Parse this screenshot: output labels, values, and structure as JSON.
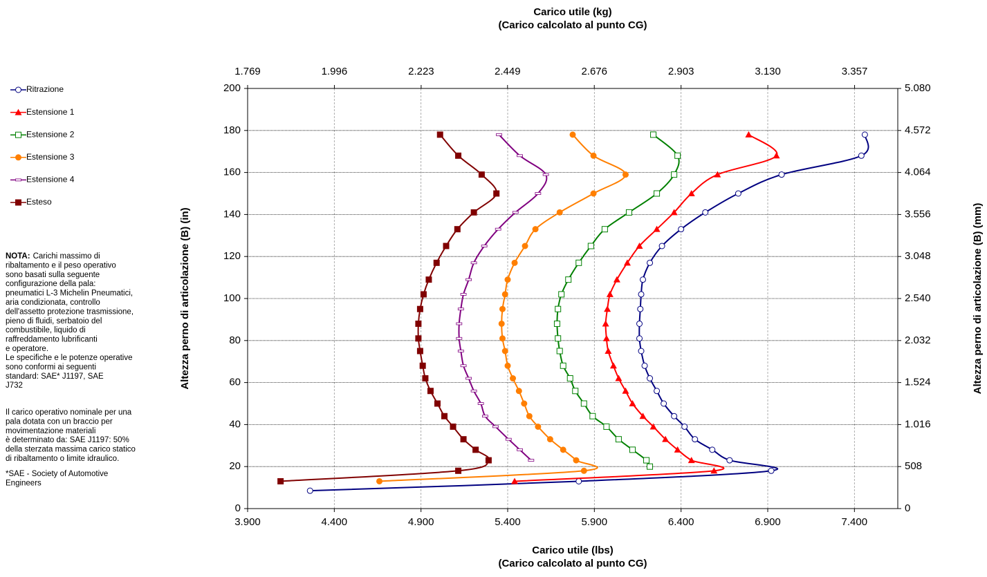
{
  "chart_data": {
    "type": "line",
    "xlabel": [
      "Carico utile (lbs)",
      "(Carico calcolato al punto CG)"
    ],
    "x2label": [
      "Carico utile (kg)",
      "(Carico calcolato al punto CG)"
    ],
    "ylabel": "Altezza perno di articolazione (B) (in)",
    "y2label": "Altezza perno di articolazione (B) (mm)",
    "xlim": [
      3900,
      7650
    ],
    "xticks": [
      {
        "value": 3900,
        "label": "3.900"
      },
      {
        "value": 4400,
        "label": "4.400"
      },
      {
        "value": 4900,
        "label": "4.900"
      },
      {
        "value": 5400,
        "label": "5.400"
      },
      {
        "value": 5900,
        "label": "5.900"
      },
      {
        "value": 6400,
        "label": "6.400"
      },
      {
        "value": 6900,
        "label": "6.900"
      },
      {
        "value": 7400,
        "label": "7.400"
      }
    ],
    "x2lim": [
      1769,
      3470
    ],
    "x2ticks": [
      {
        "value": 1769,
        "label": "1.769"
      },
      {
        "value": 1996,
        "label": "1.996"
      },
      {
        "value": 2223,
        "label": "2.223"
      },
      {
        "value": 2449,
        "label": "2.449"
      },
      {
        "value": 2676,
        "label": "2.676"
      },
      {
        "value": 2903,
        "label": "2.903"
      },
      {
        "value": 3130,
        "label": "3.130"
      },
      {
        "value": 3357,
        "label": "3.357"
      }
    ],
    "ylim": [
      0,
      200
    ],
    "yticks": [
      0,
      20,
      40,
      60,
      80,
      100,
      120,
      140,
      160,
      180,
      200
    ],
    "y2lim": [
      0,
      5080
    ],
    "y2ticks": [
      0,
      508,
      {
        "value": 1016,
        "label": "1.016"
      },
      {
        "value": 1524,
        "label": "1.524"
      },
      {
        "value": 2032,
        "label": "2.032"
      },
      {
        "value": 2540,
        "label": "2.540"
      },
      {
        "value": 3048,
        "label": "3.048"
      },
      {
        "value": 3556,
        "label": "3.556"
      },
      {
        "value": 4064,
        "label": "4.064"
      },
      {
        "value": 4572,
        "label": "4.572"
      },
      {
        "value": 5080,
        "label": "5.080"
      }
    ],
    "grid": true,
    "legend": "left",
    "series": [
      {
        "name": "Ritrazione",
        "color": "#000080",
        "marker": "open-circle",
        "x": [
          7460,
          7440,
          6980,
          6730,
          6540,
          6400,
          6290,
          6220,
          6180,
          6170,
          6165,
          6160,
          6160,
          6170,
          6190,
          6220,
          6260,
          6300,
          6360,
          6420,
          6480,
          6580,
          6680,
          6920,
          5810,
          4260
        ],
        "values": [
          178,
          168,
          159,
          150,
          141,
          133,
          125,
          117,
          109,
          102,
          95,
          88,
          81,
          75,
          68,
          62,
          56,
          50,
          44,
          39,
          33,
          28,
          23,
          18,
          13,
          8.5
        ]
      },
      {
        "name": "Estensione 1",
        "color": "#ff0000",
        "marker": "triangle",
        "x": [
          6790,
          6950,
          6610,
          6460,
          6360,
          6260,
          6160,
          6090,
          6030,
          5990,
          5975,
          5965,
          5970,
          5980,
          6010,
          6040,
          6080,
          6120,
          6180,
          6240,
          6310,
          6380,
          6460,
          6590,
          5440
        ],
        "values": [
          178,
          168,
          159,
          150,
          141,
          133,
          125,
          117,
          109,
          102,
          95,
          88,
          81,
          75,
          68,
          62,
          56,
          50,
          44,
          39,
          33,
          28,
          23,
          18,
          13
        ]
      },
      {
        "name": "Estensione 2",
        "color": "#008000",
        "marker": "open-square",
        "x": [
          6240,
          6380,
          6360,
          6260,
          6100,
          5960,
          5880,
          5810,
          5750,
          5710,
          5690,
          5685,
          5690,
          5700,
          5720,
          5760,
          5790,
          5840,
          5890,
          5970,
          6040,
          6120,
          6200,
          6220
        ],
        "values": [
          178,
          168,
          159,
          150,
          141,
          133,
          125,
          117,
          109,
          102,
          95,
          88,
          81,
          75,
          68,
          62,
          56,
          50,
          44,
          39,
          33,
          28,
          23,
          20
        ]
      },
      {
        "name": "Estensione 3",
        "color": "#ff7f00",
        "marker": "circle",
        "x": [
          5775,
          5895,
          6080,
          5895,
          5700,
          5560,
          5500,
          5440,
          5400,
          5385,
          5370,
          5365,
          5370,
          5385,
          5400,
          5430,
          5465,
          5495,
          5525,
          5575,
          5645,
          5720,
          5795,
          5840,
          4660
        ],
        "values": [
          178,
          168,
          159,
          150,
          141,
          133,
          125,
          117,
          109,
          102,
          95,
          88,
          81,
          75,
          68,
          62,
          56,
          50,
          44,
          39,
          33,
          28,
          23,
          18,
          13
        ]
      },
      {
        "name": "Estensione 4",
        "color": "#800080",
        "marker": "dash",
        "x": [
          5350,
          5470,
          5620,
          5575,
          5445,
          5345,
          5265,
          5205,
          5175,
          5145,
          5130,
          5120,
          5120,
          5130,
          5145,
          5175,
          5205,
          5245,
          5270,
          5330,
          5405,
          5470,
          5535
        ],
        "values": [
          178,
          168,
          159,
          150,
          141,
          133,
          125,
          117,
          109,
          102,
          95,
          88,
          81,
          75,
          68,
          62,
          56,
          50,
          44,
          39,
          33,
          28,
          23
        ]
      },
      {
        "name": "Esteso",
        "color": "#800000",
        "marker": "square",
        "x": [
          5010,
          5115,
          5250,
          5335,
          5205,
          5110,
          5045,
          4990,
          4945,
          4915,
          4895,
          4885,
          4885,
          4895,
          4910,
          4925,
          4955,
          4995,
          5035,
          5085,
          5145,
          5215,
          5290,
          5115,
          4090
        ],
        "values": [
          178,
          168,
          159,
          150,
          141,
          133,
          125,
          117,
          109,
          102,
          95,
          88,
          81,
          75,
          68,
          62,
          56,
          50,
          44,
          39,
          33,
          28,
          23,
          18,
          13
        ]
      }
    ]
  },
  "notes": [
    {
      "label": "NOTA:",
      "lines": [
        "Carichi massimo di",
        "ribaltamento e il peso operativo",
        "sono basati sulla seguente",
        "configurazione della pala:",
        "pneumatici L-3 Michelin Pneumatici,",
        "aria condizionata, controllo",
        "dell'assetto protezione trasmissione,",
        "pieno di fluidi, serbatoio del",
        "combustibile, liquido di",
        "raffreddamento lubrificanti",
        "e operatore."
      ]
    },
    {
      "lines": [
        "Le specifiche e le potenze operative",
        "sono conformi ai seguenti",
        "standard: SAE* J1197, SAE",
        "J732"
      ]
    },
    {
      "lines": [
        "Il carico operativo nominale per una",
        "pala dotata con un braccio per",
        "movimentazione materiali",
        "è determinato da: SAE J1197:  50%",
        "della sterzata massima carico statico",
        "di ribaltamento o limite idraulico."
      ]
    },
    {
      "lines": [
        "*SAE - Society of Automotive",
        "Engineers"
      ]
    }
  ]
}
